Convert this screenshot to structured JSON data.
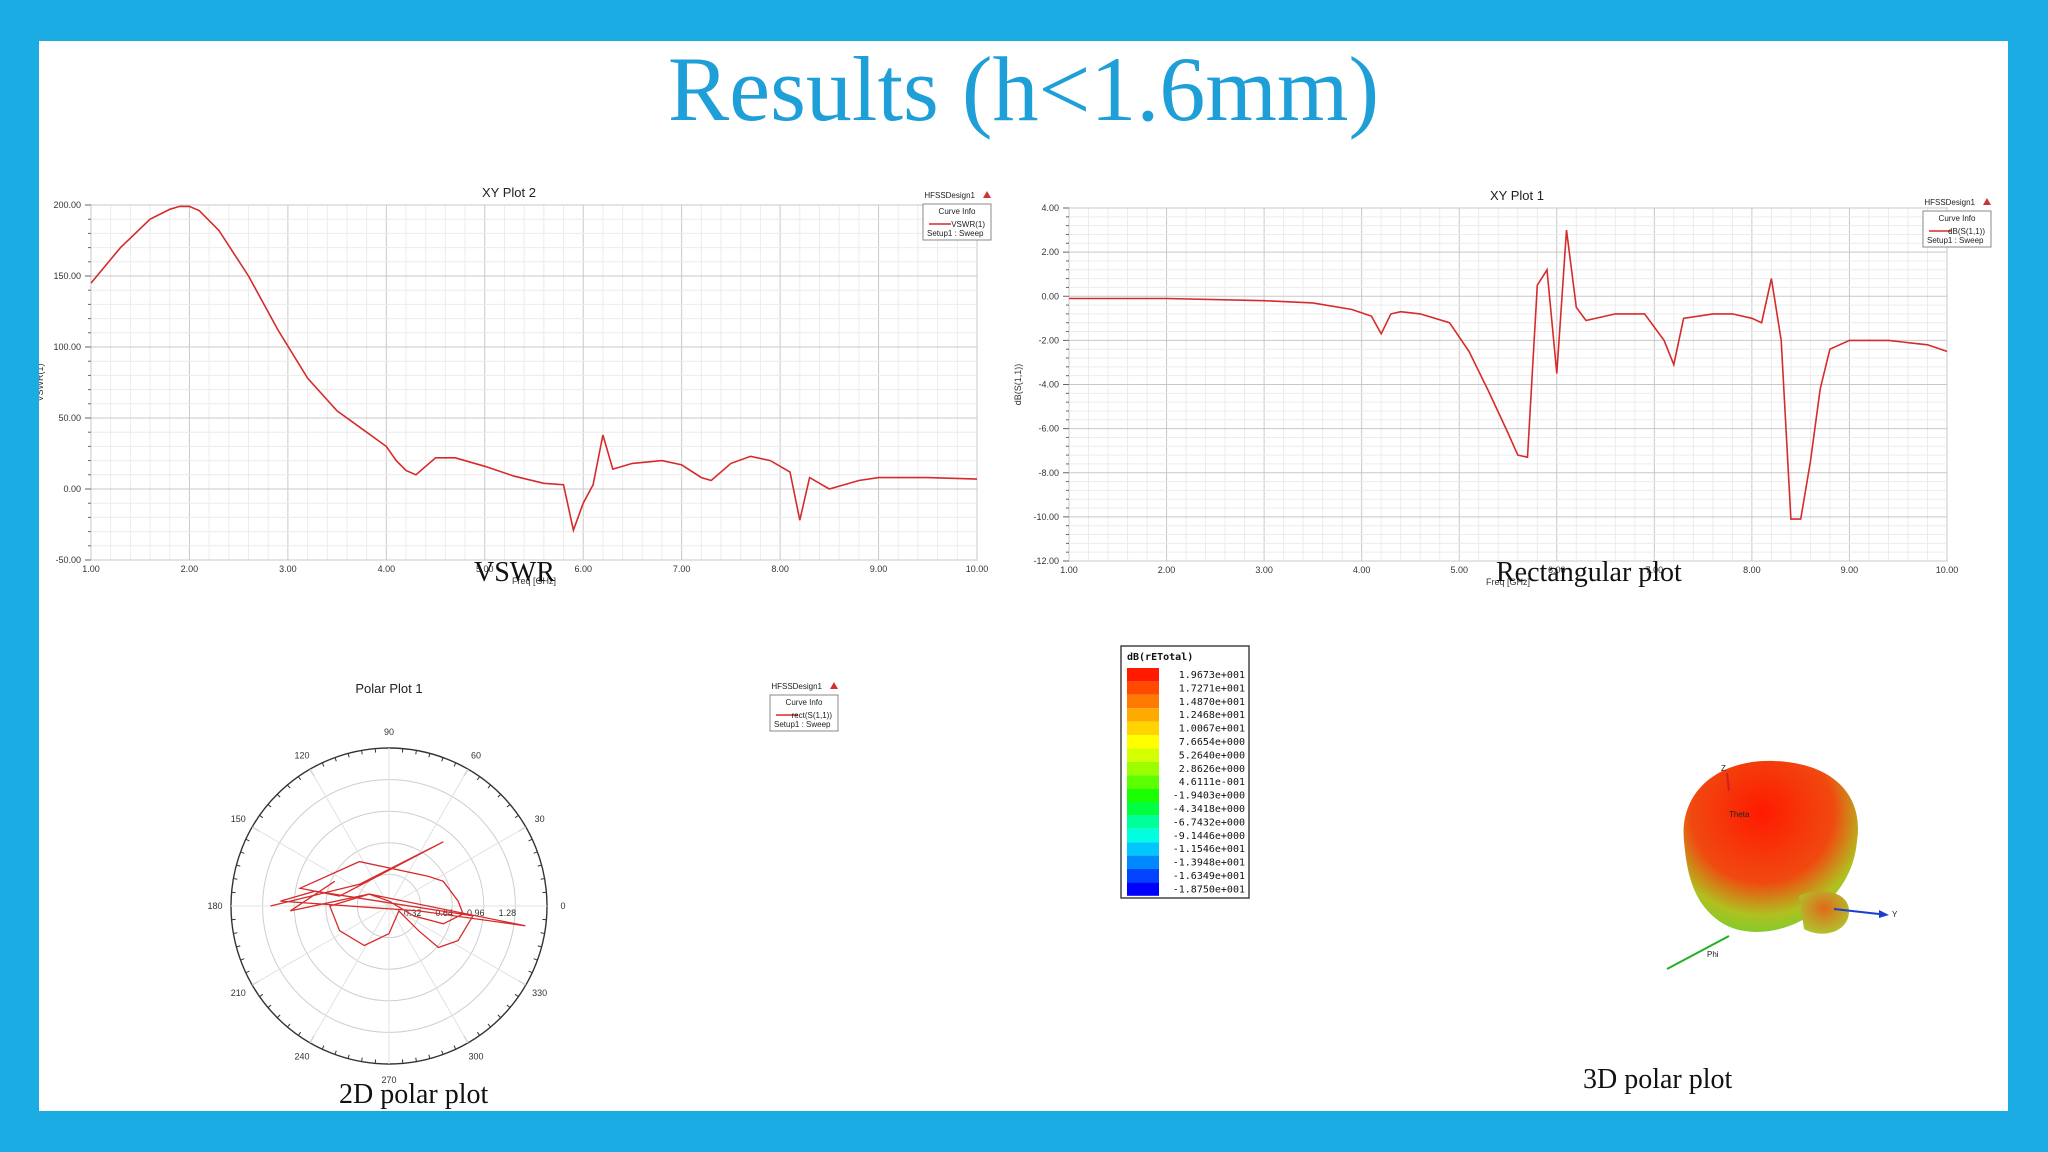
{
  "slide": {
    "title": "Results (h<1.6mm)",
    "captions": {
      "vswr": "VSWR",
      "rect": "Rectangular plot",
      "polar2d": "2D polar plot",
      "polar3d": "3D polar plot"
    }
  },
  "colors": {
    "frame": "#1aace3",
    "title": "#1f9fd8",
    "curve": "#d62b2b"
  },
  "chart_data": [
    {
      "id": "vswr",
      "type": "line",
      "title": "XY Plot 2",
      "design": "HFSSDesign1",
      "legend": {
        "header": "Curve Info",
        "entry": "VSWR(1)",
        "sub": "Setup1 : Sweep"
      },
      "xlabel": "Freq [GHz]",
      "ylabel": "VSWR(1)",
      "xlim": [
        1,
        10
      ],
      "ylim": [
        -50,
        200
      ],
      "xticks": [
        "1.00",
        "2.00",
        "3.00",
        "4.00",
        "5.00",
        "6.00",
        "7.00",
        "8.00",
        "9.00",
        "10.00"
      ],
      "yticks": [
        "200.00",
        "150.00",
        "100.00",
        "50.00",
        "0.00",
        "-50.00"
      ],
      "series": [
        {
          "x": [
            1.0,
            1.3,
            1.6,
            1.8,
            1.9,
            2.0,
            2.1,
            2.3,
            2.6,
            2.9,
            3.2,
            3.5,
            3.8,
            4.0,
            4.1,
            4.2,
            4.3,
            4.5,
            4.7,
            5.0,
            5.3,
            5.6,
            5.8,
            5.9,
            6.0,
            6.1,
            6.2,
            6.3,
            6.5,
            6.8,
            7.0,
            7.2,
            7.3,
            7.5,
            7.7,
            7.9,
            8.1,
            8.2,
            8.3,
            8.5,
            8.8,
            9.0,
            9.5,
            10.0
          ],
          "y": [
            145,
            170,
            190,
            197,
            199,
            199,
            196,
            182,
            150,
            112,
            78,
            55,
            40,
            30,
            20,
            13,
            10,
            22,
            22,
            16,
            9,
            4,
            3,
            -29,
            -10,
            3,
            38,
            14,
            18,
            20,
            17,
            8,
            6,
            18,
            23,
            20,
            12,
            -22,
            8,
            0,
            6,
            8,
            8,
            7
          ]
        }
      ]
    },
    {
      "id": "rect",
      "type": "line",
      "title": "XY Plot 1",
      "design": "HFSSDesign1",
      "legend": {
        "header": "Curve Info",
        "entry": "dB(S(1,1))",
        "sub": "Setup1 : Sweep"
      },
      "xlabel": "Freq [GHz]",
      "ylabel": "dB(S(1,1))",
      "xlim": [
        1,
        10
      ],
      "ylim": [
        -12,
        4
      ],
      "xticks": [
        "1.00",
        "2.00",
        "3.00",
        "4.00",
        "5.00",
        "6.00",
        "7.00",
        "8.00",
        "9.00",
        "10.00"
      ],
      "yticks": [
        "4.00",
        "2.00",
        "0.00",
        "-2.00",
        "-4.00",
        "-6.00",
        "-8.00",
        "-10.00",
        "-12.00"
      ],
      "series": [
        {
          "x": [
            1.0,
            2.0,
            3.0,
            3.5,
            3.9,
            4.1,
            4.2,
            4.3,
            4.4,
            4.6,
            4.9,
            5.1,
            5.3,
            5.5,
            5.6,
            5.7,
            5.8,
            5.9,
            6.0,
            6.1,
            6.2,
            6.3,
            6.6,
            6.9,
            7.1,
            7.2,
            7.3,
            7.6,
            7.8,
            8.0,
            8.1,
            8.2,
            8.3,
            8.4,
            8.5,
            8.6,
            8.7,
            8.8,
            9.0,
            9.4,
            9.8,
            10.0
          ],
          "y": [
            -0.1,
            -0.1,
            -0.2,
            -0.3,
            -0.6,
            -0.9,
            -1.7,
            -0.8,
            -0.7,
            -0.8,
            -1.2,
            -2.5,
            -4.3,
            -6.2,
            -7.2,
            -7.3,
            0.5,
            1.2,
            -3.5,
            3.0,
            -0.5,
            -1.1,
            -0.8,
            -0.8,
            -2.0,
            -3.1,
            -1.0,
            -0.8,
            -0.8,
            -1.0,
            -1.2,
            0.8,
            -2.0,
            -10.1,
            -10.1,
            -7.5,
            -4.2,
            -2.4,
            -2.0,
            -2.0,
            -2.2,
            -2.5
          ]
        }
      ]
    },
    {
      "id": "polar2d",
      "type": "scatter",
      "title": "Polar Plot 1",
      "design": "HFSSDesign1",
      "legend": {
        "header": "Curve Info",
        "entry": "rect(S(1,1))",
        "sub": "Setup1 : Sweep"
      },
      "angle_labels": [
        "90",
        "60",
        "30",
        "0",
        "330",
        "300",
        "270",
        "240",
        "210",
        "180",
        "150",
        "120"
      ],
      "angles": [
        90,
        60,
        30,
        0,
        330,
        300,
        270,
        240,
        210,
        180,
        150,
        120
      ],
      "radial_labels": [
        "0.32",
        "0.64",
        "0.96",
        "1.28"
      ],
      "radial_values": [
        0.32,
        0.64,
        0.96,
        1.28
      ],
      "rmax": 1.6,
      "series": [
        {
          "points": [
            [
              -1.2,
              0.0
            ],
            [
              -0.3,
              0.22
            ],
            [
              0.55,
              0.65
            ],
            [
              -0.5,
              0.1
            ],
            [
              -0.9,
              0.18
            ],
            [
              -0.3,
              0.45
            ],
            [
              0.4,
              0.3
            ],
            [
              0.55,
              0.25
            ],
            [
              0.7,
              0.05
            ],
            [
              0.75,
              -0.08
            ],
            [
              0.55,
              -0.18
            ],
            [
              0.25,
              -0.1
            ],
            [
              0.0,
              0.05
            ],
            [
              -0.2,
              0.12
            ],
            [
              -0.6,
              0.0
            ],
            [
              -0.5,
              -0.25
            ],
            [
              -0.25,
              -0.4
            ],
            [
              0.0,
              -0.28
            ],
            [
              0.1,
              -0.05
            ],
            [
              0.15,
              -0.1
            ],
            [
              0.3,
              -0.25
            ],
            [
              0.5,
              -0.42
            ],
            [
              0.7,
              -0.35
            ],
            [
              0.85,
              -0.1
            ],
            [
              -0.75,
              0.15
            ],
            [
              -1.1,
              0.05
            ],
            [
              0.3,
              -0.05
            ],
            [
              1.38,
              -0.2
            ],
            [
              -0.2,
              0.12
            ],
            [
              -1.0,
              -0.05
            ],
            [
              -0.55,
              0.25
            ]
          ]
        }
      ]
    }
  ],
  "colorbar": {
    "title": "dB(rETotal)",
    "values": [
      "1.9673e+001",
      "1.7271e+001",
      "1.4870e+001",
      "1.2468e+001",
      "1.0067e+001",
      "7.6654e+000",
      "5.2640e+000",
      "2.8626e+000",
      "4.6111e-001",
      "-1.9403e+000",
      "-4.3418e+000",
      "-6.7432e+000",
      "-9.1446e+000",
      "-1.1546e+001",
      "-1.3948e+001",
      "-1.6349e+001",
      "-1.8750e+001"
    ],
    "colors": [
      "#ff1a00",
      "#ff4a00",
      "#ff7a00",
      "#ffaa00",
      "#ffd400",
      "#ffff00",
      "#d4ff00",
      "#9cff00",
      "#5cff00",
      "#1cff00",
      "#00ff40",
      "#00ff9a",
      "#00ffe0",
      "#00c8ff",
      "#0088ff",
      "#0044ff",
      "#0000ff"
    ]
  },
  "radiation3d": {
    "z_label": "Z",
    "y_label": "Y",
    "theta_label": "Theta",
    "phi_label": "Phi"
  }
}
